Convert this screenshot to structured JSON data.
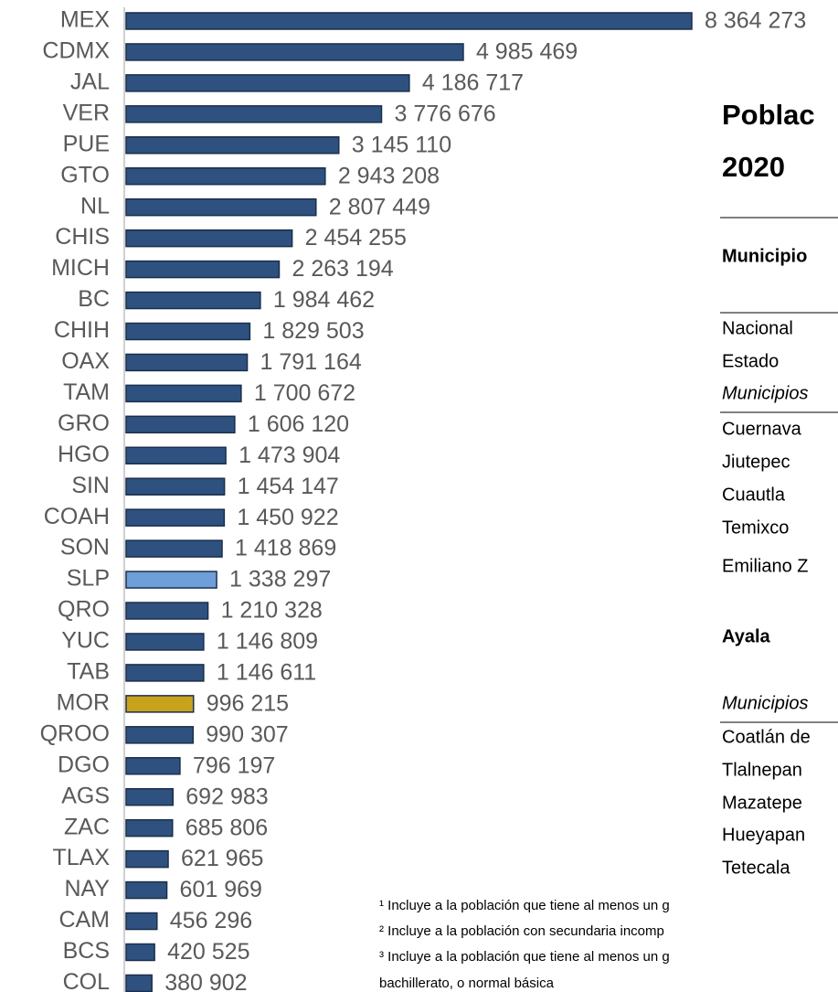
{
  "chart_data": {
    "type": "bar",
    "orientation": "horizontal",
    "categories": [
      "MEX",
      "CDMX",
      "JAL",
      "VER",
      "PUE",
      "GTO",
      "NL",
      "CHIS",
      "MICH",
      "BC",
      "CHIH",
      "OAX",
      "TAM",
      "GRO",
      "HGO",
      "SIN",
      "COAH",
      "SON",
      "SLP",
      "QRO",
      "YUC",
      "TAB",
      "MOR",
      "QROO",
      "DGO",
      "AGS",
      "ZAC",
      "TLAX",
      "NAY",
      "CAM",
      "BCS",
      "COL"
    ],
    "values": [
      8364273,
      4985469,
      4186717,
      3776676,
      3145110,
      2943208,
      2807449,
      2454255,
      2263194,
      1984462,
      1829503,
      1791164,
      1700672,
      1606120,
      1473904,
      1454147,
      1450922,
      1418869,
      1338297,
      1210328,
      1146809,
      1146611,
      996215,
      990307,
      796197,
      692983,
      685806,
      621965,
      601969,
      456296,
      420525,
      380902
    ],
    "value_labels": [
      "8 364 273",
      "4 985 469",
      "4 186 717",
      "3 776 676",
      "3 145 110",
      "2 943 208",
      "2 807 449",
      "2 454 255",
      "2 263 194",
      "1 984 462",
      "1 829 503",
      "1 791 164",
      "1 700 672",
      "1 606 120",
      "1 473 904",
      "1 454 147",
      "1 450 922",
      "1 418 869",
      "1 338 297",
      "1 210 328",
      "1 146 809",
      "1 146 611",
      "996 215",
      "990 307",
      "796 197",
      "692 983",
      "685 806",
      "621 965",
      "601 969",
      "456 296",
      "420 525",
      "380 902"
    ],
    "colors": [
      "#2e5180",
      "#2e5180",
      "#2e5180",
      "#2e5180",
      "#2e5180",
      "#2e5180",
      "#2e5180",
      "#2e5180",
      "#2e5180",
      "#2e5180",
      "#2e5180",
      "#2e5180",
      "#2e5180",
      "#2e5180",
      "#2e5180",
      "#2e5180",
      "#2e5180",
      "#2e5180",
      "#6f9fd8",
      "#2e5180",
      "#2e5180",
      "#2e5180",
      "#c9a21c",
      "#2e5180",
      "#2e5180",
      "#2e5180",
      "#2e5180",
      "#2e5180",
      "#2e5180",
      "#2e5180",
      "#2e5180",
      "#2e5180"
    ]
  },
  "panel": {
    "title": [
      "Poblac",
      "2020"
    ],
    "header": "Municipio",
    "rows1": [
      "Nacional",
      "Estado"
    ],
    "subhead1": "Municipios",
    "rows2": [
      "Cuernava",
      "Jiutepec",
      "Cuautla",
      "Temixco",
      "Emiliano Z"
    ],
    "section": "Ayala",
    "subhead2": "Municipios",
    "rows3": [
      "Coatlán de",
      "Tlalnepan",
      "Mazatepe",
      "Hueyapan",
      "Tetecala"
    ],
    "notes": [
      "¹ Incluye a la población que tiene al menos un g",
      "² Incluye a la población con secundaria incomp",
      "³ Incluye a la población que tiene al menos un g",
      "bachillerato, o normal básica"
    ]
  }
}
